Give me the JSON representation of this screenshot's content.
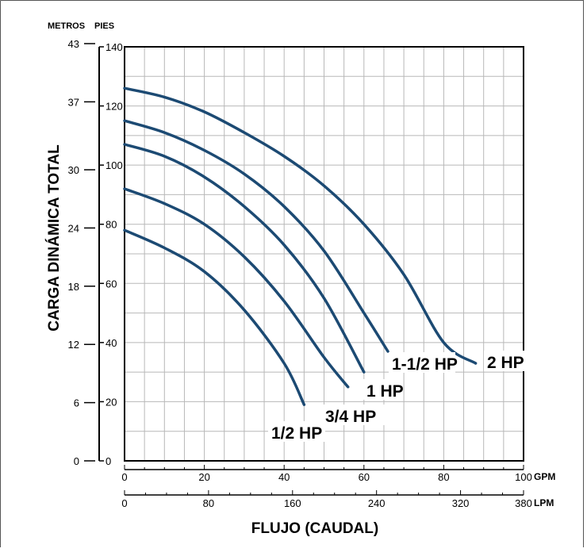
{
  "chart_data": {
    "type": "line",
    "header_left": "METROS",
    "header_right": "PIES",
    "ylabel": "CARGA DINÁMICA TOTAL",
    "xlabel": "FLUJO (CAUDAL)",
    "x_unit_primary": "GPM",
    "x_unit_secondary": "LPM",
    "xlim": [
      0,
      100
    ],
    "ylim": [
      0,
      140
    ],
    "grid": true,
    "x_major_ticks": [
      0,
      20,
      40,
      60,
      80,
      100
    ],
    "x_major_labels": [
      "0",
      "20",
      "40",
      "60",
      "80",
      "100"
    ],
    "x_secondary_ticks": [
      0,
      80,
      160,
      240,
      320,
      380
    ],
    "x_secondary_labels": [
      "0",
      "80",
      "160",
      "240",
      "320",
      "380"
    ],
    "y_ticks": [
      0,
      20,
      40,
      60,
      80,
      100,
      120,
      140
    ],
    "y_labels": [
      "0",
      "20",
      "40",
      "60",
      "80",
      "100",
      "120",
      "140"
    ],
    "y_secondary_ticks": [
      0,
      6,
      12,
      18,
      24,
      30,
      37,
      43
    ],
    "y_secondary_labels": [
      "0",
      "6",
      "12",
      "18",
      "24",
      "30",
      "37",
      "43"
    ],
    "series": [
      {
        "name": "1/2 HP",
        "x": [
          0,
          10,
          20,
          30,
          40,
          45
        ],
        "y": [
          78,
          72,
          64,
          51,
          33,
          19
        ]
      },
      {
        "name": "3/4 HP",
        "x": [
          0,
          10,
          20,
          30,
          40,
          50,
          56
        ],
        "y": [
          92,
          87,
          80,
          69,
          54,
          35,
          25
        ]
      },
      {
        "name": "1 HP",
        "x": [
          0,
          10,
          20,
          30,
          40,
          50,
          60
        ],
        "y": [
          107,
          103,
          96,
          86,
          73,
          55,
          30
        ]
      },
      {
        "name": "1-1/2 HP",
        "x": [
          0,
          10,
          20,
          30,
          40,
          50,
          60,
          66
        ],
        "y": [
          115,
          111,
          105,
          97,
          86,
          71,
          50,
          37
        ]
      },
      {
        "name": "2 HP",
        "x": [
          0,
          10,
          20,
          30,
          40,
          50,
          60,
          70,
          80,
          88
        ],
        "y": [
          126,
          123,
          118,
          111,
          103,
          93,
          80,
          63,
          40,
          33
        ]
      }
    ],
    "line_color": "#1c4a73",
    "grid_color": "#b8b8b8"
  }
}
